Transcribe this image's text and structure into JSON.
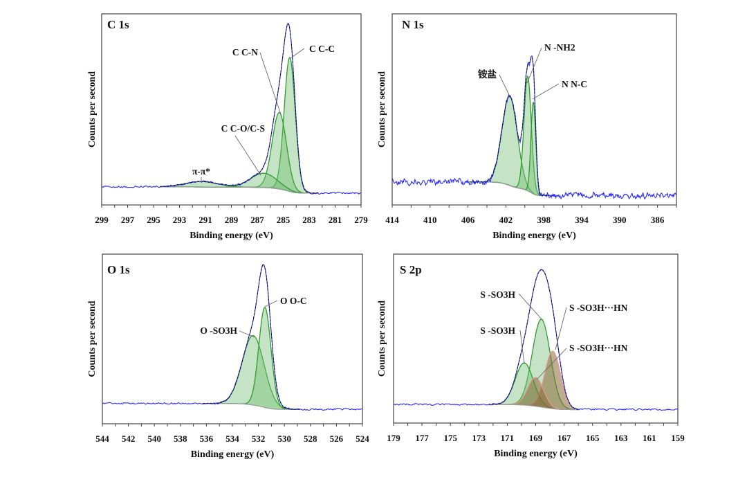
{
  "chart_data": [
    {
      "type": "line",
      "title": "C  1s",
      "xlabel": "Binding energy (eV)",
      "ylabel": "Counts per second",
      "xlim": [
        299,
        279
      ],
      "ylim": [
        0,
        1
      ],
      "x_reversed": true,
      "xtick_labels": [
        "299",
        "297",
        "295",
        "293",
        "291",
        "289",
        "287",
        "285",
        "283",
        "281",
        "279"
      ],
      "xtick_minor_step": 1,
      "y_ticks_shown": false,
      "fit_range": [
        294.5,
        282.3
      ],
      "background": {
        "high_energy_level": 0.095,
        "low_energy_level": 0.062
      },
      "peaks": [
        {
          "label": "C  C-C",
          "center": 284.5,
          "fwhm": 1.0,
          "height": 0.7,
          "color": "green"
        },
        {
          "label": "C  C-N",
          "center": 285.3,
          "fwhm": 1.3,
          "height": 0.4,
          "color": "green"
        },
        {
          "label": "C  C-O/C-S",
          "center": 286.5,
          "fwhm": 2.4,
          "height": 0.075,
          "color": "green"
        },
        {
          "label": "π-π*",
          "center": 291.3,
          "fwhm": 3.0,
          "height": 0.028,
          "color": "green"
        }
      ],
      "noise": 0.004
    },
    {
      "type": "line",
      "title": "N 1s",
      "xlabel": "Binding energy (eV)",
      "ylabel": "Counts per second",
      "xlim": [
        414,
        384
      ],
      "ylim": [
        0,
        1
      ],
      "x_reversed": true,
      "xtick_labels": [
        "414",
        "410",
        "406",
        "402",
        "398",
        "394",
        "390",
        "386"
      ],
      "xtick_minor_step": 2,
      "y_ticks_shown": false,
      "fit_range": [
        406,
        397.3
      ],
      "background": {
        "high_energy_level": 0.12,
        "low_energy_level": 0.05
      },
      "peaks": [
        {
          "label": "铵盐",
          "center": 401.6,
          "fwhm": 1.9,
          "height": 0.47,
          "color": "green"
        },
        {
          "label": "N  -NH2",
          "center": 399.7,
          "fwhm": 0.9,
          "height": 0.6,
          "color": "green"
        },
        {
          "label": "N N-C",
          "center": 399.1,
          "fwhm": 0.6,
          "height": 0.48,
          "color": "green"
        }
      ],
      "noise": 0.012
    },
    {
      "type": "line",
      "title": "O 1s",
      "xlabel": "Binding energy (eV)",
      "ylabel": "Counts per second",
      "xlim": [
        544,
        524
      ],
      "ylim": [
        0,
        1
      ],
      "x_reversed": true,
      "xtick_labels": [
        "544",
        "542",
        "540",
        "538",
        "536",
        "534",
        "532",
        "530",
        "528",
        "526",
        "524"
      ],
      "xtick_minor_step": 1,
      "y_ticks_shown": false,
      "fit_range": [
        536.3,
        528.8
      ],
      "background": {
        "high_energy_level": 0.12,
        "low_energy_level": 0.085
      },
      "peaks": [
        {
          "label": "O O-C",
          "center": 532.4,
          "fwhm": 2.0,
          "height": 0.41,
          "color": "green"
        },
        {
          "label": "O -SO3H",
          "center": 531.5,
          "fwhm": 1.1,
          "height": 0.59,
          "color": "green"
        }
      ],
      "noise": 0.004
    },
    {
      "type": "line",
      "title": "S 2p",
      "xlabel": "Binding energy (eV)",
      "ylabel": "",
      "xlim": [
        179,
        159
      ],
      "ylim": [
        0,
        1
      ],
      "x_reversed": true,
      "xtick_labels": [
        "179",
        "177",
        "175",
        "173",
        "171",
        "169",
        "167",
        "165",
        "163",
        "161",
        "159"
      ],
      "xtick_minor_step": 1,
      "y_ticks_shown": false,
      "fit_range": [
        172.3,
        166.0
      ],
      "background": {
        "high_energy_level": 0.11,
        "low_energy_level": 0.08
      },
      "peaks": [
        {
          "label": "S -SO3H",
          "center": 168.6,
          "fwhm": 1.5,
          "height": 0.52,
          "color": "green"
        },
        {
          "label": "S -SO3H",
          "center": 169.8,
          "fwhm": 1.5,
          "height": 0.25,
          "color": "green"
        },
        {
          "label": "S -SO3H···HN",
          "center": 167.8,
          "fwhm": 1.3,
          "height": 0.34,
          "color": "brown"
        },
        {
          "label": "S -SO3H···HN",
          "center": 169.0,
          "fwhm": 1.3,
          "height": 0.17,
          "color": "brown"
        }
      ],
      "noise": 0.004
    }
  ],
  "colors": {
    "raw_data": "#2a2aff",
    "envelope": "#111111",
    "background_line": "#9a9a9a",
    "green_fill": "#6dbb6d",
    "green_stroke": "#2f9a2f",
    "brown_fill": "#8a6a3a",
    "brown_stroke": "#e89890"
  }
}
